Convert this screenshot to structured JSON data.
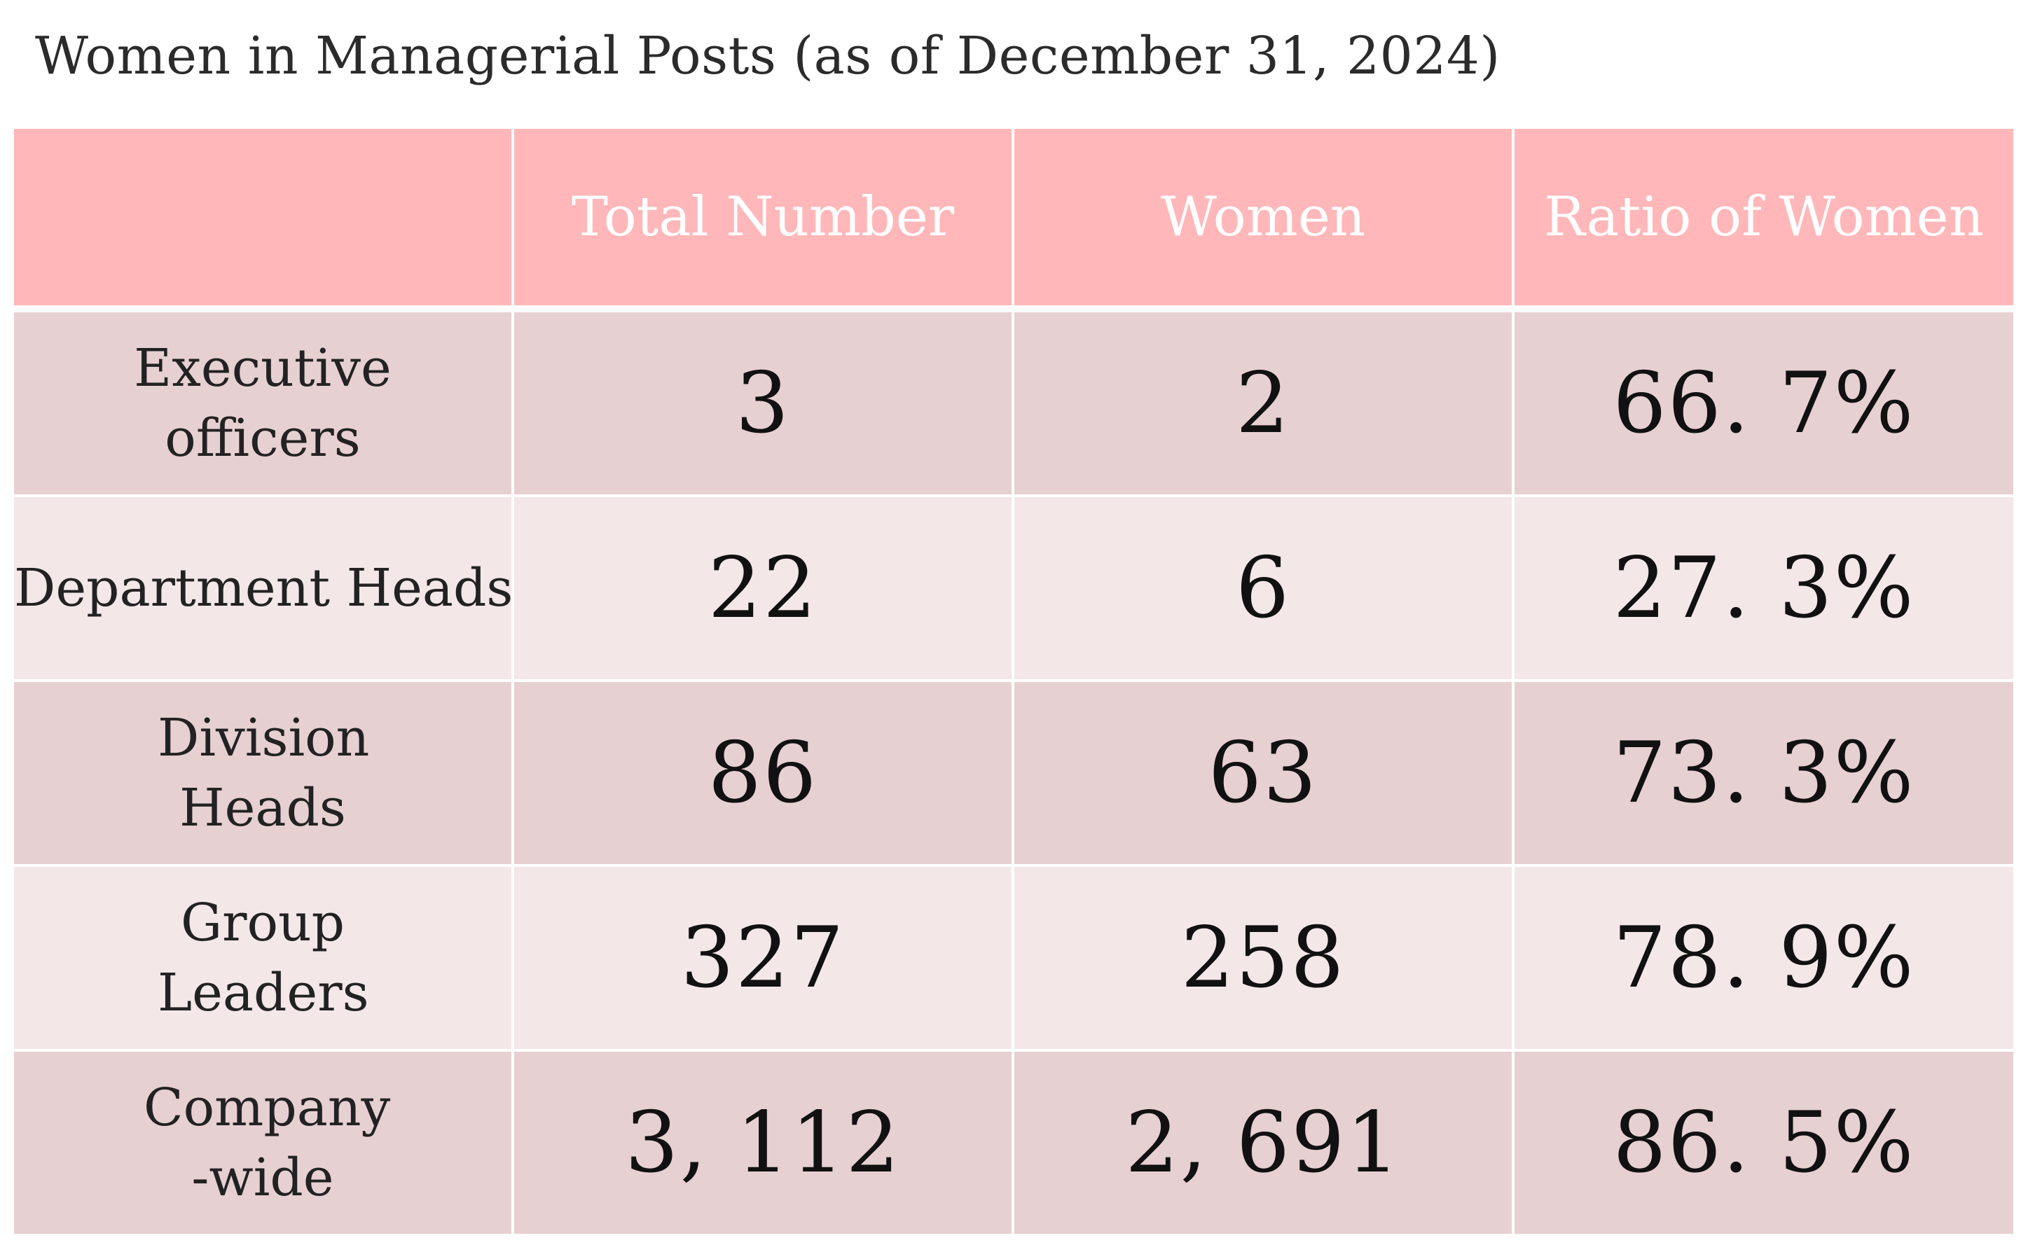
{
  "title": "Women in Managerial Posts (as of December 31, 2024)",
  "colors": {
    "header_bg": "#ffb7b9",
    "header_text": "#ffffff",
    "row_dark_bg": "#e7d0d1",
    "row_light_bg": "#f3e7e7"
  },
  "chart_data": {
    "type": "table",
    "title": "Women in Managerial Posts (as of December 31, 2024)",
    "columns": [
      "",
      "Total Number",
      "Women",
      "Ratio of Women"
    ],
    "rows": [
      {
        "label": "Executive officers",
        "total": "3",
        "women": "2",
        "ratio": "66. 7%"
      },
      {
        "label": "Department Heads",
        "total": "22",
        "women": "6",
        "ratio": "27. 3%"
      },
      {
        "label": "Division Heads",
        "total": "86",
        "women": "63",
        "ratio": "73. 3%"
      },
      {
        "label": "Group Leaders",
        "total": "327",
        "women": "258",
        "ratio": "78. 9%"
      },
      {
        "label": "Company -wide",
        "total": "3, 112",
        "women": "2, 691",
        "ratio": "86. 5%"
      }
    ]
  }
}
